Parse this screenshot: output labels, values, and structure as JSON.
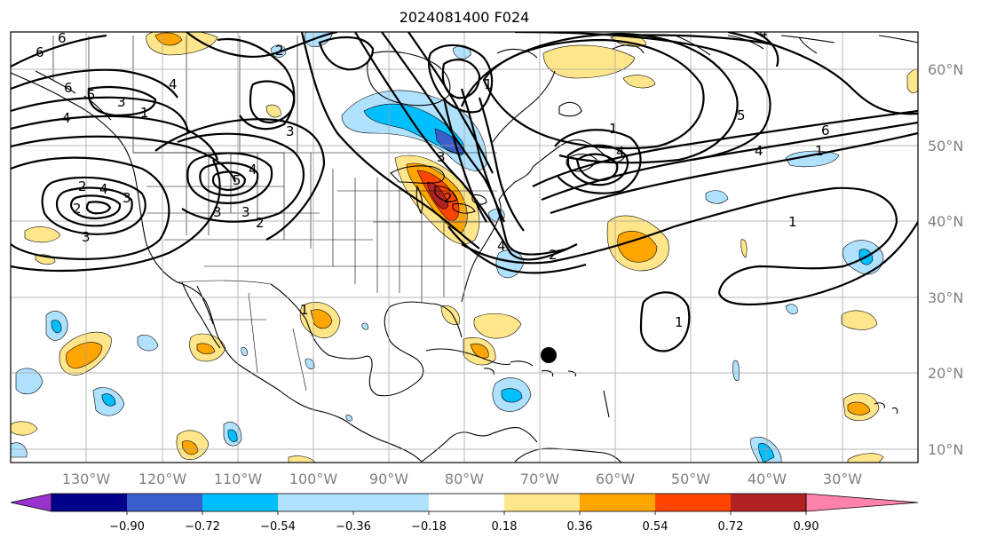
{
  "title": "2024081400 F024",
  "map": {
    "longitude_labels": [
      "130°W",
      "120°W",
      "110°W",
      "100°W",
      "90°W",
      "80°W",
      "70°W",
      "60°W",
      "50°W",
      "40°W",
      "30°W"
    ],
    "latitude_labels": [
      "60°N",
      "50°N",
      "40°N",
      "30°N",
      "20°N",
      "10°N"
    ],
    "contour_labels": [
      "6",
      "6",
      "5",
      "3",
      "1",
      "4",
      "2",
      "2",
      "3",
      "3",
      "4",
      "5",
      "4",
      "3",
      "2",
      "3",
      "3",
      "2",
      "2",
      "1",
      "4",
      "1",
      "6",
      "4",
      "5",
      "4",
      "1",
      "6",
      "4",
      "1",
      "1",
      "2",
      "1",
      "3",
      "4"
    ],
    "marker": "black-dot"
  },
  "colorbar": {
    "ticks": [
      "−0.90",
      "−0.72",
      "−0.54",
      "−0.36",
      "−0.18",
      "0.18",
      "0.36",
      "0.54",
      "0.72",
      "0.90"
    ],
    "colors": [
      "#9a32cd",
      "#00008b",
      "#3a5fcd",
      "#00bfff",
      "#b0e2ff",
      "#ffffff",
      "#ffe68a",
      "#ffa500",
      "#ff4500",
      "#b22222",
      "#ff82ab"
    ]
  },
  "colors": {
    "grid": "#a0a0a0",
    "tick_text": "#808080",
    "land_border": "#000000"
  }
}
